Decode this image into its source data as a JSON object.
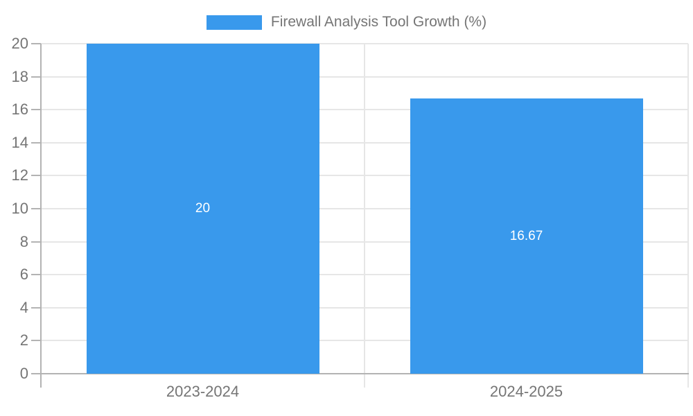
{
  "chart_data": {
    "type": "bar",
    "title": "",
    "legend": {
      "label": "Firewall Analysis Tool Growth (%)",
      "position": "top-center"
    },
    "categories": [
      "2023-2024",
      "2024-2025"
    ],
    "values": [
      20,
      16.67
    ],
    "value_labels": [
      "20",
      "16.67"
    ],
    "xlabel": "",
    "ylabel": "",
    "ylim": [
      0,
      20
    ],
    "ytick_step": 2,
    "yticks": [
      0,
      2,
      4,
      6,
      8,
      10,
      12,
      14,
      16,
      18,
      20
    ],
    "grid": true,
    "colors": {
      "bar": "#3999ec",
      "grid": "#e6e6e6",
      "axis": "#b3b3b3",
      "tick_label": "#757575",
      "legend_text": "#757575",
      "bar_label": "#ffffff",
      "background": "#ffffff"
    }
  }
}
